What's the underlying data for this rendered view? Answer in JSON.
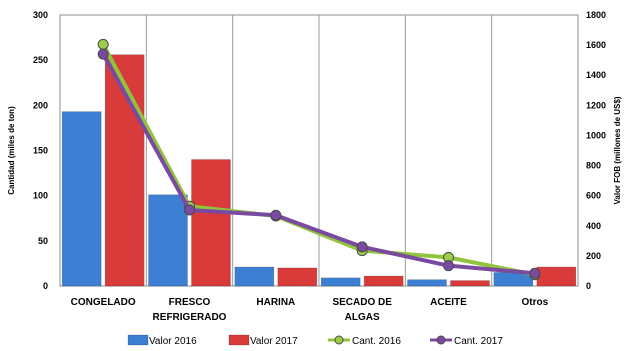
{
  "chart_data": {
    "type": "bar",
    "categories": [
      [
        "CONGELADO"
      ],
      [
        "FRESCO",
        "REFRIGERADO"
      ],
      [
        "HARINA"
      ],
      [
        "SECADO DE",
        "ALGAS"
      ],
      [
        "ACEITE"
      ],
      [
        "Otros"
      ]
    ],
    "bar_series": [
      {
        "name": "Valor 2016",
        "axis": "left",
        "color": "#3d7fd3",
        "values": [
          193,
          101,
          21,
          9,
          7,
          15
        ]
      },
      {
        "name": "Valor 2017",
        "axis": "left",
        "color": "#d93b3b",
        "values": [
          256,
          140,
          20,
          11,
          6,
          21
        ]
      }
    ],
    "line_series": [
      {
        "name": "Cant. 2016",
        "axis": "right",
        "color": "#8fc43c",
        "marker_fill": "#9ccc4a",
        "values": [
          1605,
          530,
          465,
          235,
          190,
          75
        ]
      },
      {
        "name": "Cant. 2017",
        "axis": "right",
        "color": "#7a4aa0",
        "marker_fill": "#7a4aa0",
        "values": [
          1540,
          505,
          470,
          260,
          135,
          85
        ]
      }
    ],
    "ylabel_left": "Cantidad (miles de ton)",
    "ylabel_right": "Valor FOB (millones de US$)",
    "ylim_left": [
      0,
      300
    ],
    "ylim_right": [
      0,
      1800
    ],
    "yticks_left": [
      0,
      50,
      100,
      150,
      200,
      250,
      300
    ],
    "yticks_right": [
      0,
      200,
      400,
      600,
      800,
      1000,
      1200,
      1400,
      1600,
      1800
    ],
    "grid": "vertical",
    "legend_position": "bottom"
  }
}
